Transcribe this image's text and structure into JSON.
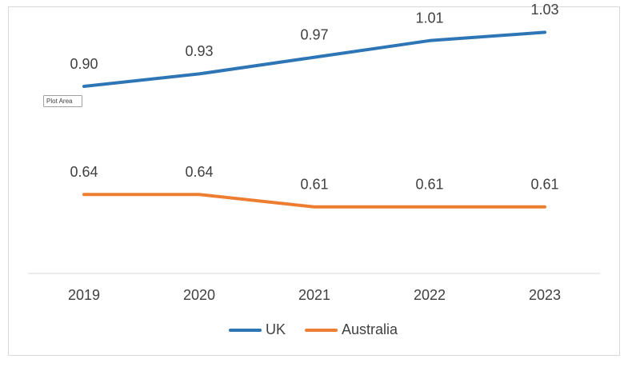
{
  "chart_data": {
    "type": "line",
    "categories": [
      "2019",
      "2020",
      "2021",
      "2022",
      "2023"
    ],
    "series": [
      {
        "name": "UK",
        "color": "#2e75b6",
        "values": [
          0.9,
          0.93,
          0.97,
          1.01,
          1.03
        ],
        "value_labels": [
          "0.90",
          "0.93",
          "0.97",
          "1.01",
          "1.03"
        ]
      },
      {
        "name": "Australia",
        "color": "#ed7d31",
        "values": [
          0.64,
          0.64,
          0.61,
          0.61,
          0.61
        ],
        "value_labels": [
          "0.64",
          "0.64",
          "0.61",
          "0.61",
          "0.61"
        ]
      }
    ],
    "ylim": [
      0.45,
      1.05
    ],
    "legend": "bottom",
    "tooltip": "Plot Area"
  }
}
